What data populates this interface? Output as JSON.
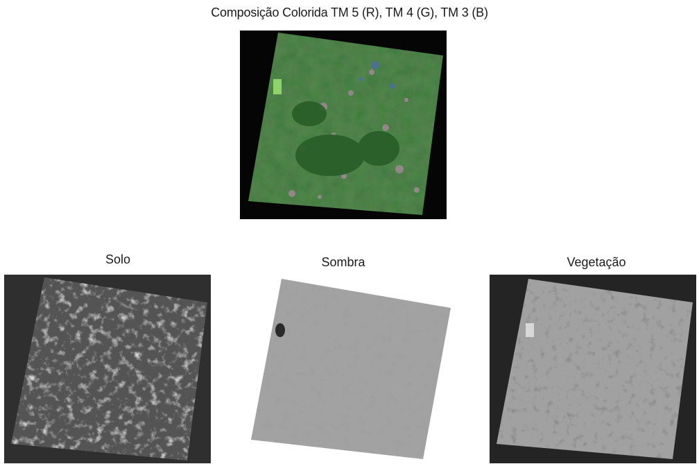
{
  "title": "Composição Colorida TM 5 (R), TM 4 (G), TM 3 (B)",
  "panels": {
    "composite": {
      "colors": {
        "base": "#3f7b3a",
        "dark": "#2e6a2e",
        "light": "#7fa874",
        "pink": "#a88b9a",
        "blue": "#4a6f9c",
        "bright": "#8fd36b"
      }
    },
    "soil": {
      "label": "Solo",
      "colors": {
        "frame": "#2f2f2f",
        "base": "#535353",
        "speck": "#dadada"
      }
    },
    "shade": {
      "label": "Sombra",
      "colors": {
        "frame": "#ffffff",
        "base": "#a3a3a3",
        "speck": "#5c5c5c"
      }
    },
    "vegetation": {
      "label": "Vegetação",
      "colors": {
        "frame": "#242424",
        "base": "#a0a0a0",
        "speck": "#3a3a3a"
      }
    }
  }
}
